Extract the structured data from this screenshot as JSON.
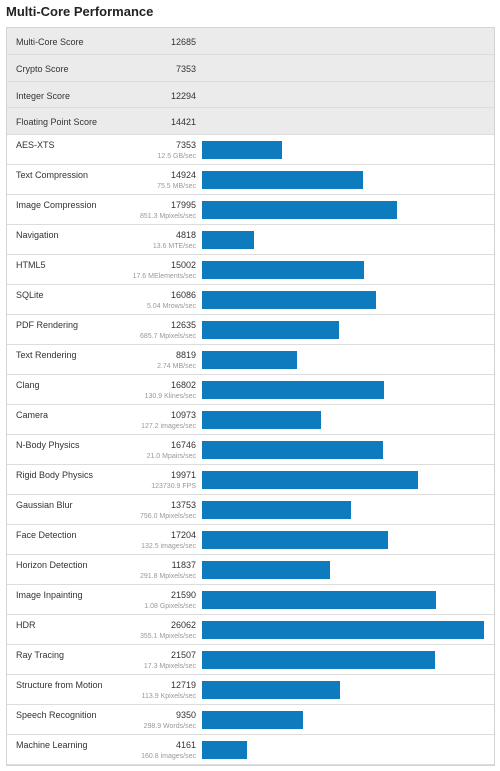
{
  "title": "Multi-Core Performance",
  "summary": [
    {
      "name": "Multi-Core Score",
      "score": 12685
    },
    {
      "name": "Crypto Score",
      "score": 7353
    },
    {
      "name": "Integer Score",
      "score": 12294
    },
    {
      "name": "Floating Point Score",
      "score": 14421
    }
  ],
  "workloads": [
    {
      "name": "AES-XTS",
      "score": 7353,
      "rate": "12.5 GB/sec"
    },
    {
      "name": "Text Compression",
      "score": 14924,
      "rate": "75.5 MB/sec"
    },
    {
      "name": "Image Compression",
      "score": 17995,
      "rate": "851.3 Mpixels/sec"
    },
    {
      "name": "Navigation",
      "score": 4818,
      "rate": "13.6 MTE/sec"
    },
    {
      "name": "HTML5",
      "score": 15002,
      "rate": "17.6 MElements/sec"
    },
    {
      "name": "SQLite",
      "score": 16086,
      "rate": "5.04 Mrows/sec"
    },
    {
      "name": "PDF Rendering",
      "score": 12635,
      "rate": "685.7 Mpixels/sec"
    },
    {
      "name": "Text Rendering",
      "score": 8819,
      "rate": "2.74 MB/sec"
    },
    {
      "name": "Clang",
      "score": 16802,
      "rate": "130.9 Klines/sec"
    },
    {
      "name": "Camera",
      "score": 10973,
      "rate": "127.2 images/sec"
    },
    {
      "name": "N-Body Physics",
      "score": 16746,
      "rate": "21.0 Mpairs/sec"
    },
    {
      "name": "Rigid Body Physics",
      "score": 19971,
      "rate": "123730.9 FPS"
    },
    {
      "name": "Gaussian Blur",
      "score": 13753,
      "rate": "756.0 Mpixels/sec"
    },
    {
      "name": "Face Detection",
      "score": 17204,
      "rate": "132.5 images/sec"
    },
    {
      "name": "Horizon Detection",
      "score": 11837,
      "rate": "291.8 Mpixels/sec"
    },
    {
      "name": "Image Inpainting",
      "score": 21590,
      "rate": "1.08 Gpixels/sec"
    },
    {
      "name": "HDR",
      "score": 26062,
      "rate": "355.1 Mpixels/sec"
    },
    {
      "name": "Ray Tracing",
      "score": 21507,
      "rate": "17.3 Mpixels/sec"
    },
    {
      "name": "Structure from Motion",
      "score": 12719,
      "rate": "113.9 Kpixels/sec"
    },
    {
      "name": "Speech Recognition",
      "score": 9350,
      "rate": "298.9 Words/sec"
    },
    {
      "name": "Machine Learning",
      "score": 4161,
      "rate": "160.8 images/sec"
    }
  ]
}
